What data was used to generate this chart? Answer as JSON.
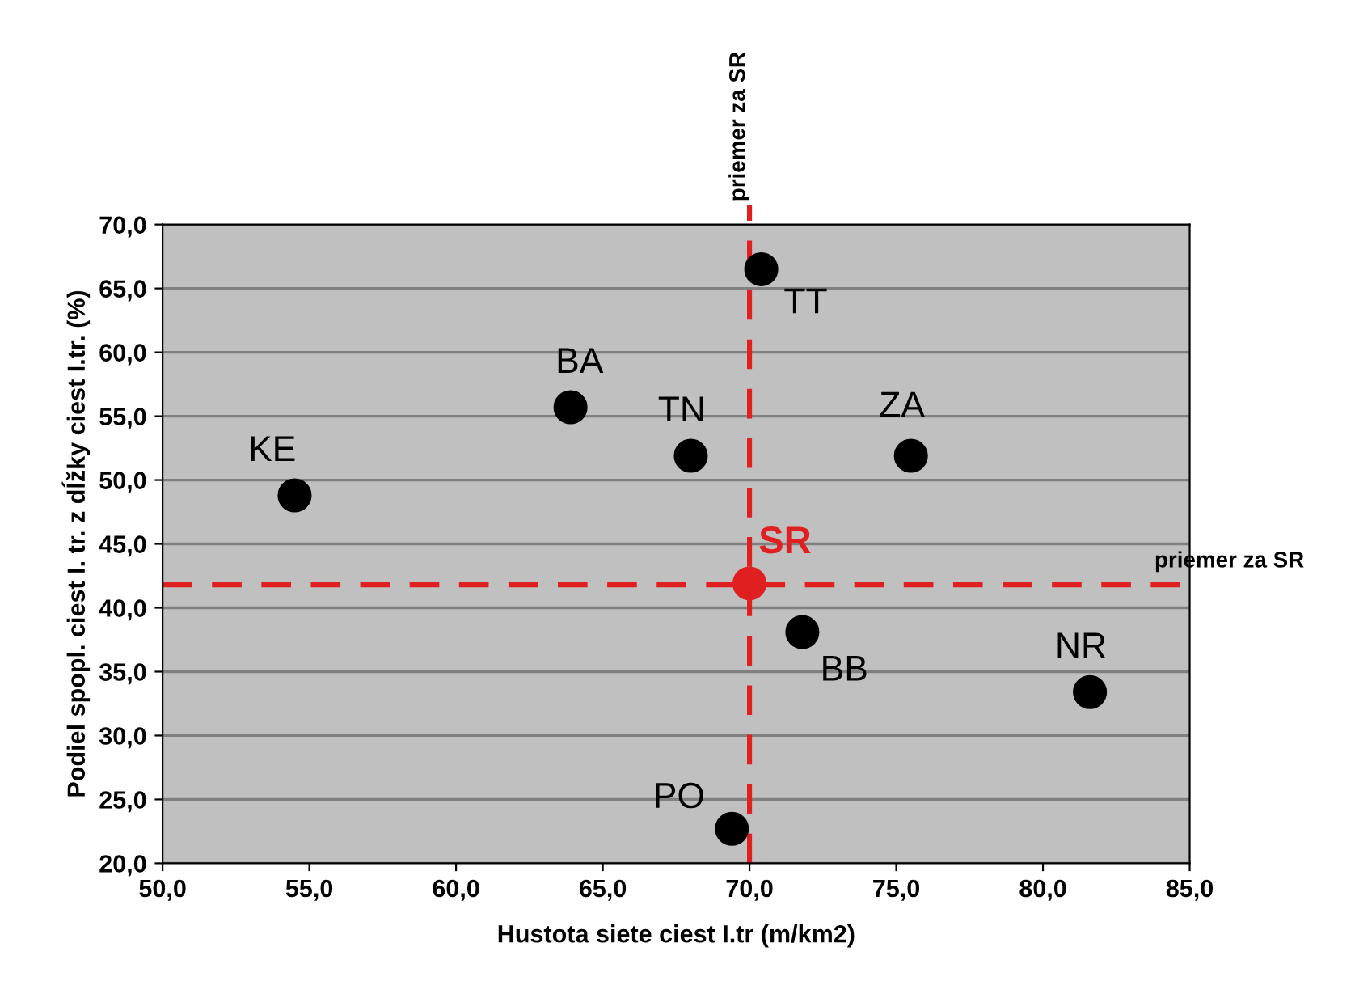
{
  "chart_data": {
    "type": "scatter",
    "xlabel": "Hustota siete ciest I.tr (m/km2)",
    "ylabel": "Podiel spopl. ciest I. tr. z dĺžky ciest I.tr. (%)",
    "series": [
      {
        "name": "KE",
        "color": "#000000",
        "x": [
          54.5
        ],
        "values": [
          48.8
        ]
      },
      {
        "name": "BA",
        "color": "#000000",
        "x": [
          63.9
        ],
        "values": [
          55.7
        ]
      },
      {
        "name": "TN",
        "color": "#000000",
        "x": [
          68.0
        ],
        "values": [
          51.9
        ]
      },
      {
        "name": "SR",
        "color": "#e02020",
        "x": [
          70.0
        ],
        "values": [
          41.9
        ]
      },
      {
        "name": "PO",
        "color": "#000000",
        "x": [
          69.4
        ],
        "values": [
          22.7
        ]
      },
      {
        "name": "TT",
        "color": "#000000",
        "x": [
          70.4
        ],
        "values": [
          66.5
        ]
      },
      {
        "name": "ZA",
        "color": "#000000",
        "x": [
          75.5
        ],
        "values": [
          51.9
        ]
      },
      {
        "name": "BB",
        "color": "#000000",
        "x": [
          71.8
        ],
        "values": [
          38.1
        ]
      },
      {
        "name": "NR",
        "color": "#000000",
        "x": [
          81.6
        ],
        "values": [
          33.4
        ]
      }
    ],
    "ref_lines": [
      {
        "axis": "x",
        "value": 70.0,
        "label": "priemer za SR",
        "color": "#e02020",
        "line_style": "dashed"
      },
      {
        "axis": "y",
        "value": 41.8,
        "label": "priemer za SR",
        "color": "#e02020",
        "line_style": "dashed"
      }
    ],
    "xlim": [
      50,
      85
    ],
    "xticks": [
      {
        "value": 50,
        "label": "50,0"
      },
      {
        "value": 55,
        "label": "55,0"
      },
      {
        "value": 60,
        "label": "60,0"
      },
      {
        "value": 65,
        "label": "65,0"
      },
      {
        "value": 70,
        "label": "70,0"
      },
      {
        "value": 75,
        "label": "75,0"
      },
      {
        "value": 80,
        "label": "80,0"
      },
      {
        "value": 85,
        "label": "85,0"
      }
    ],
    "ylim": [
      20,
      70
    ],
    "yticks": [
      {
        "value": 20,
        "label": "20,0"
      },
      {
        "value": 25,
        "label": "25,0"
      },
      {
        "value": 30,
        "label": "30,0"
      },
      {
        "value": 35,
        "label": "35,0"
      },
      {
        "value": 40,
        "label": "40,0"
      },
      {
        "value": 45,
        "label": "45,0"
      },
      {
        "value": 50,
        "label": "50,0"
      },
      {
        "value": 55,
        "label": "55,0"
      },
      {
        "value": 60,
        "label": "60,0"
      },
      {
        "value": 65,
        "label": "65,0"
      },
      {
        "value": 70,
        "label": "70,0"
      }
    ],
    "grid": "y",
    "marker": "circle",
    "legend": false
  }
}
